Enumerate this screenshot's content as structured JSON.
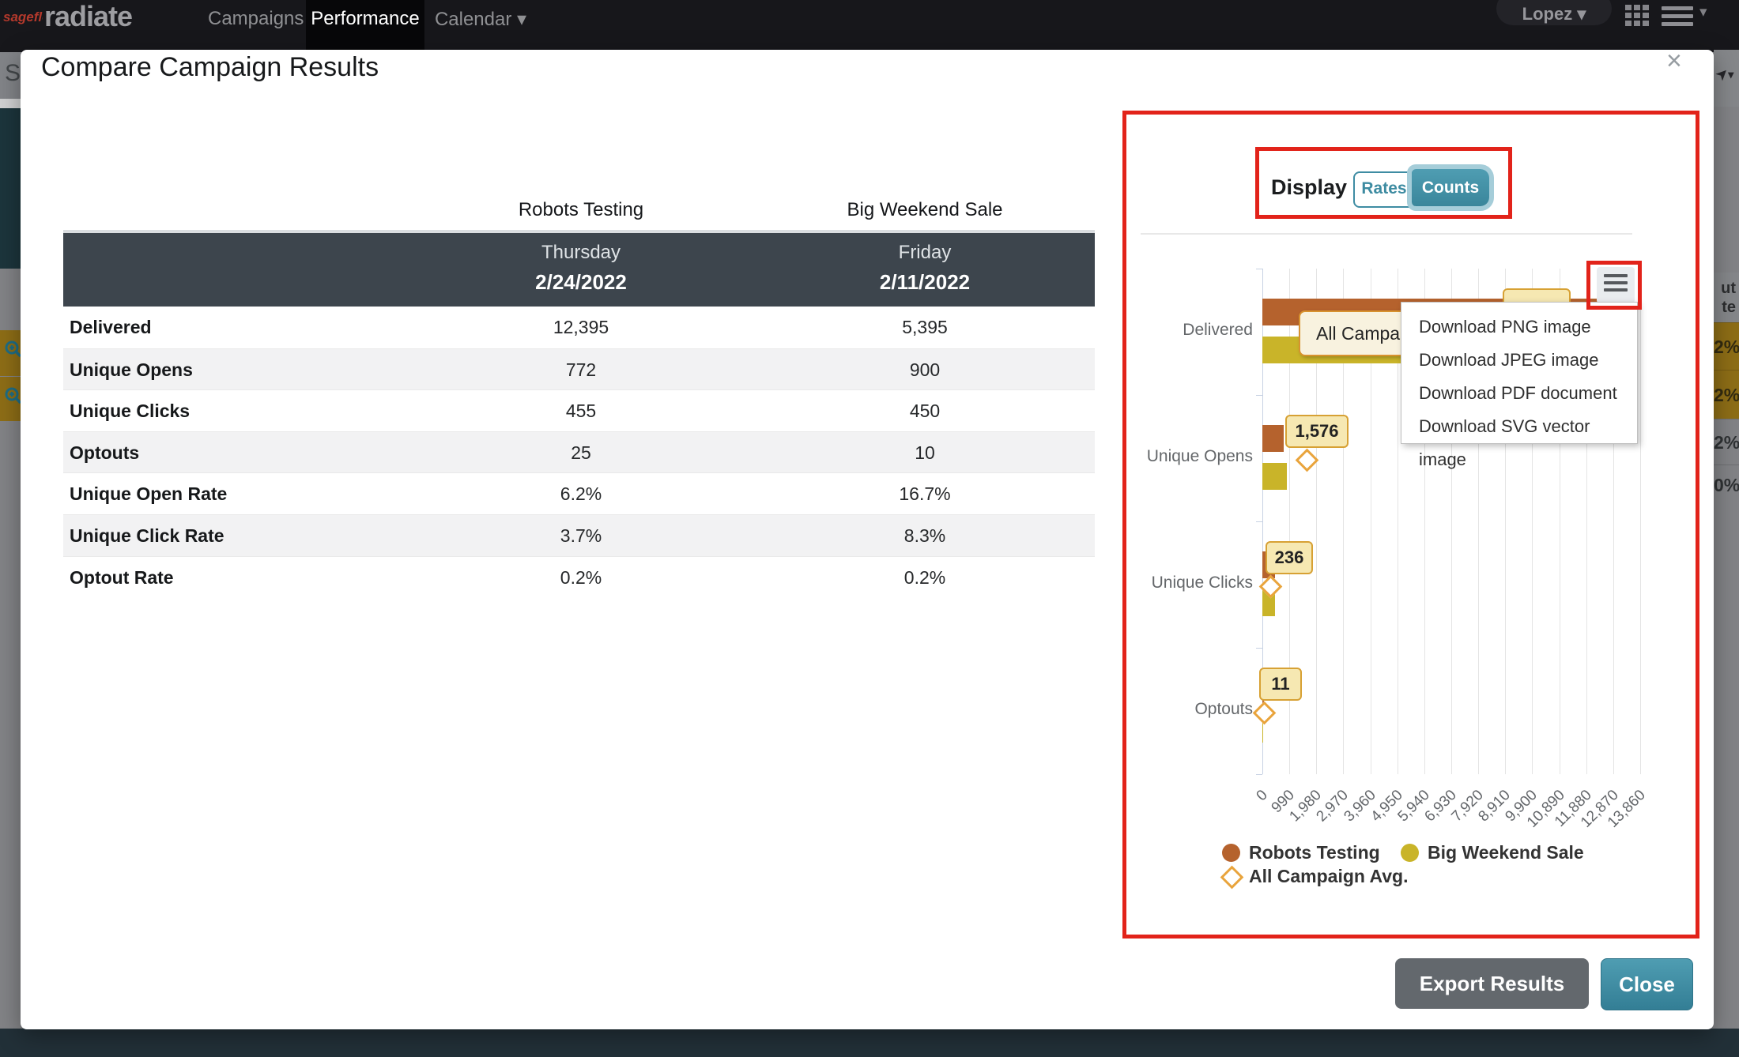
{
  "colors": {
    "annotation_red": "#e2231a",
    "teal": "#3e8ca3",
    "orange_series": "#b5622d",
    "yellow_series": "#c9b429",
    "avg_accent": "#e9a43c",
    "table_header_dark": "#3d454d",
    "navbar_bg": "#17171b"
  },
  "icons": {
    "close": "×",
    "caret_down": "▾",
    "apps": "apps-grid-icon",
    "hamburger": "hamburger-icon",
    "zoom_in": "zoom-in-icon",
    "cursor": "➤"
  },
  "navbar": {
    "brand_small": "sageflo",
    "brand": "radiate",
    "user": "Lopez",
    "tabs": [
      {
        "label": "Campaigns",
        "active": false,
        "caret": false
      },
      {
        "label": "Performance",
        "active": true,
        "caret": false
      },
      {
        "label": "Calendar",
        "active": false,
        "caret": true
      }
    ]
  },
  "background": {
    "search_fragment": "S",
    "right_header_lines": [
      "ut",
      "te"
    ],
    "right_rows": [
      {
        "text": "2%",
        "bg": "olive"
      },
      {
        "text": "2%",
        "bg": "olive"
      },
      {
        "text": "2%",
        "bg": "gray"
      },
      {
        "text": "0%",
        "bg": "gray"
      }
    ]
  },
  "modal": {
    "title": "Compare Campaign Results",
    "table": {
      "columns": [
        {
          "name": "Robots Testing",
          "day": "Thursday",
          "date": "2/24/2022"
        },
        {
          "name": "Big Weekend Sale",
          "day": "Friday",
          "date": "2/11/2022"
        }
      ],
      "rows": [
        {
          "label": "Delivered",
          "values": [
            "12,395",
            "5,395"
          ]
        },
        {
          "label": "Unique Opens",
          "values": [
            "772",
            "900"
          ]
        },
        {
          "label": "Unique Clicks",
          "values": [
            "455",
            "450"
          ]
        },
        {
          "label": "Optouts",
          "values": [
            "25",
            "10"
          ]
        },
        {
          "label": "Unique Open Rate",
          "values": [
            "6.2%",
            "16.7%"
          ]
        },
        {
          "label": "Unique Click Rate",
          "values": [
            "3.7%",
            "8.3%"
          ]
        },
        {
          "label": "Optout Rate",
          "values": [
            "0.2%",
            "0.2%"
          ]
        }
      ]
    },
    "buttons": [
      {
        "label": "Export Results"
      },
      {
        "label": "Close"
      }
    ]
  },
  "chart_panel": {
    "display_label": "Display",
    "toggle": {
      "options": [
        "Rates",
        "Counts"
      ],
      "selected": "Counts"
    },
    "menu_items": [
      "Download PNG image",
      "Download JPEG image",
      "Download PDF document",
      "Download SVG vector image"
    ],
    "tooltip_text": "All Campaig",
    "legend": [
      {
        "label": "Robots Testing",
        "marker": "circle",
        "color": "#b5622d"
      },
      {
        "label": "Big Weekend Sale",
        "marker": "circle",
        "color": "#c9b429"
      },
      {
        "label": "All Campaign Avg.",
        "marker": "diamond",
        "color": "#e9a43c"
      }
    ],
    "chart_data": {
      "type": "bar",
      "orientation": "horizontal",
      "categories": [
        "Delivered",
        "Unique Opens",
        "Unique Clicks",
        "Optouts"
      ],
      "series": [
        {
          "name": "Robots Testing",
          "values": [
            12395,
            772,
            455,
            25
          ]
        },
        {
          "name": "Big Weekend Sale",
          "values": [
            5395,
            900,
            450,
            10
          ]
        },
        {
          "name": "All Campaign Avg.",
          "marker": "diamond",
          "values": [
            null,
            1576,
            236,
            11
          ],
          "visible_labels": [
            "",
            "1,576",
            "236",
            "11"
          ]
        }
      ],
      "xlim": [
        0,
        13860
      ],
      "x_ticks": [
        "0",
        "990",
        "1,980",
        "2,970",
        "3,960",
        "4,950",
        "5,940",
        "6,930",
        "7,920",
        "8,910",
        "9,900",
        "10,890",
        "11,880",
        "12,870",
        "13,860"
      ],
      "grid": true,
      "legend_position": "bottom"
    }
  }
}
